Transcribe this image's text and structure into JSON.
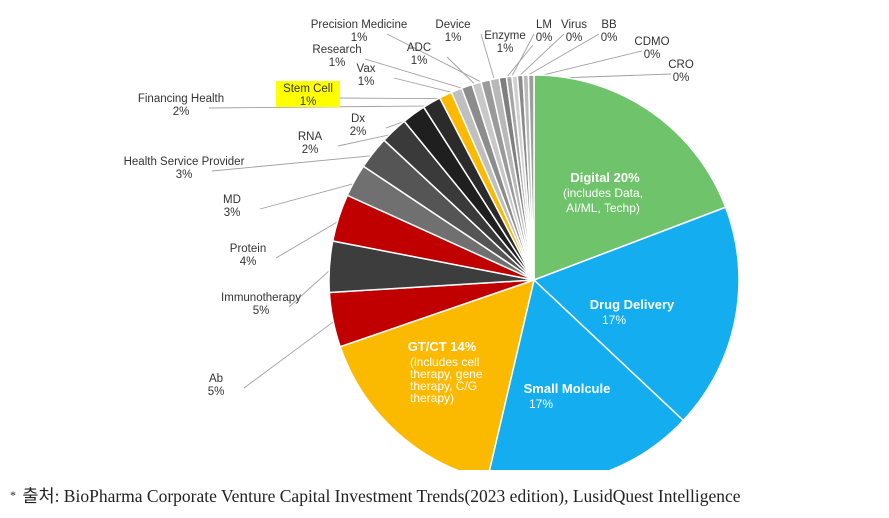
{
  "chart_data": {
    "type": "pie",
    "slices": [
      {
        "label": "Digital",
        "value": 20,
        "pct_text": "20%",
        "detail": [
          "(includes Data,",
          "AI/ML, Techp)"
        ],
        "color": "#6fc36a"
      },
      {
        "label": "Drug Delivery",
        "value": 17,
        "pct_text": "17%",
        "color": "#14aef0"
      },
      {
        "label": "Small Molcule",
        "value": 17,
        "pct_text": "17%",
        "color": "#14aef0"
      },
      {
        "label": "GT/CT",
        "value": 14,
        "pct_text": "14%",
        "detail": [
          "(includes cell",
          "therapy, gene",
          "therapy, C/G",
          "therapy)"
        ],
        "color": "#fbb900"
      },
      {
        "label": "Ab",
        "value": 5,
        "pct_text": "5%",
        "color": "#c00000"
      },
      {
        "label": "Immunotherapy",
        "value": 5,
        "pct_text": "5%",
        "color": "#3d3d3d"
      },
      {
        "label": "Protein",
        "value": 4,
        "pct_text": "4%",
        "color": "#c00000"
      },
      {
        "label": "MD",
        "value": 3,
        "pct_text": "3%",
        "color": "#707070"
      },
      {
        "label": "Health Service Provider",
        "value": 3,
        "pct_text": "3%",
        "color": "#555555"
      },
      {
        "label": "RNA",
        "value": 2,
        "pct_text": "2%",
        "color": "#3a3a3a"
      },
      {
        "label": "Dx",
        "value": 2,
        "pct_text": "2%",
        "color": "#1f1f1f"
      },
      {
        "label": "Financing Health",
        "value": 2,
        "pct_text": "2%",
        "color": "#2b2b2b"
      },
      {
        "label": "Stem Cell",
        "value": 1,
        "pct_text": "1%",
        "color": "#fbb900",
        "highlight": "#ffff00"
      },
      {
        "label": "Vax",
        "value": 1,
        "pct_text": "1%",
        "color": "#bfbfbf"
      },
      {
        "label": "Research",
        "value": 1,
        "pct_text": "1%",
        "color": "#8c8c8c"
      },
      {
        "label": "ADC",
        "value": 1,
        "pct_text": "1%",
        "color": "#c8c8c8"
      },
      {
        "label": "Precision Medicine",
        "value": 1,
        "pct_text": "1%",
        "color": "#9a9a9a"
      },
      {
        "label": "Device",
        "value": 1,
        "pct_text": "1%",
        "color": "#b8b8b8"
      },
      {
        "label": "Enzyme",
        "value": 1,
        "pct_text": "1%",
        "color": "#7f7f7f"
      },
      {
        "label": "LM",
        "value": 0,
        "pct_text": "0%",
        "color": "#a6a6a6"
      },
      {
        "label": "Virus",
        "value": 0,
        "pct_text": "0%",
        "color": "#d0d0d0"
      },
      {
        "label": "BB",
        "value": 0,
        "pct_text": "0%",
        "color": "#8a8a8a"
      },
      {
        "label": "CDMO",
        "value": 0,
        "pct_text": "0%",
        "color": "#bcbcbc"
      },
      {
        "label": "CRO",
        "value": 0,
        "pct_text": "0%",
        "color": "#9e9e9e"
      }
    ]
  },
  "source_note": {
    "marker": "*",
    "text": "출처: BioPharma Corporate Venture Capital Investment Trends(2023 edition), LusidQuest Intelligence"
  }
}
